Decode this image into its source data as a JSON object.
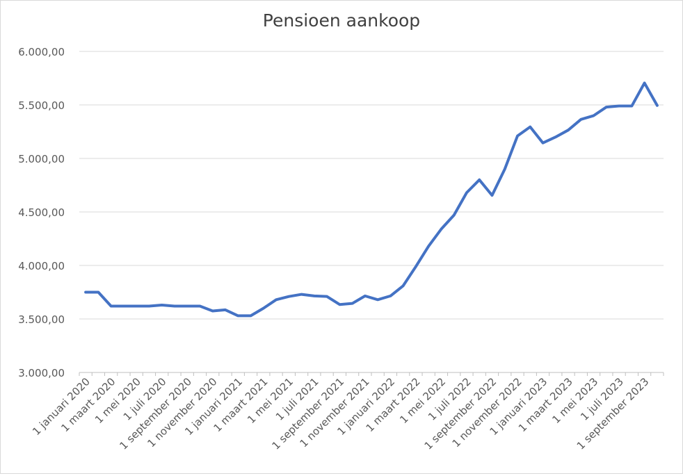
{
  "chart_data": {
    "type": "line",
    "title": "Pensioen aankoop",
    "xlabel": "",
    "ylabel": "",
    "ylim": [
      3000,
      6000
    ],
    "yticks": [
      "3.000,00",
      "3.500,00",
      "4.000,00",
      "4.500,00",
      "5.000,00",
      "5.500,00",
      "6.000,00"
    ],
    "ytick_values": [
      3000,
      3500,
      4000,
      4500,
      5000,
      5500,
      6000
    ],
    "x_tick_labels": [
      "1 januari 2020",
      "1 maart 2020",
      "1 mei 2020",
      "1 juli 2020",
      "1 september 2020",
      "1 november 2020",
      "1 januari 2021",
      "1 maart 2021",
      "1 mei 2021",
      "1 juli 2021",
      "1 september 2021",
      "1 november 2021",
      "1 januari 2022",
      "1 maart 2022",
      "1 mei 2022",
      "1 juli 2022",
      "1 september 2022",
      "1 november 2022",
      "1 januari 2023",
      "1 maart 2023",
      "1 mei 2023",
      "1 juli 2023",
      "1 september 2023"
    ],
    "x_tick_months": [
      0,
      2,
      4,
      6,
      8,
      10,
      12,
      14,
      16,
      18,
      20,
      22,
      24,
      26,
      28,
      30,
      32,
      34,
      36,
      38,
      40,
      42,
      44
    ],
    "grid": true,
    "legend": "none",
    "series": [
      {
        "color": "#4472c4",
        "values": [
          3750,
          3750,
          3620,
          3620,
          3620,
          3620,
          3630,
          3620,
          3620,
          3620,
          3575,
          3585,
          3530,
          3530,
          3600,
          3680,
          3710,
          3730,
          3715,
          3710,
          3635,
          3645,
          3715,
          3680,
          3715,
          3810,
          3990,
          4180,
          4340,
          4470,
          4680,
          4800,
          4655,
          4900,
          5210,
          5295,
          5145,
          5200,
          5265,
          5365,
          5400,
          5480,
          5490,
          5490,
          5705,
          5495
        ]
      }
    ]
  }
}
